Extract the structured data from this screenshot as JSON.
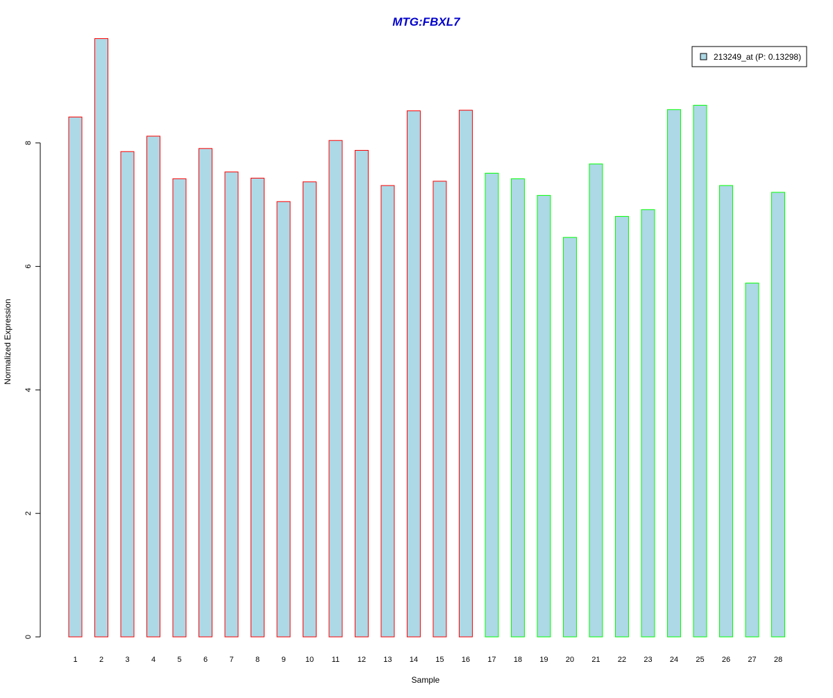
{
  "chart_data": {
    "type": "bar",
    "title": "MTG:FBXL7",
    "xlabel": "Sample",
    "ylabel": "Normalized Expression",
    "categories": [
      "1",
      "2",
      "3",
      "4",
      "5",
      "6",
      "7",
      "8",
      "9",
      "10",
      "11",
      "12",
      "13",
      "14",
      "15",
      "16",
      "17",
      "18",
      "19",
      "20",
      "21",
      "22",
      "23",
      "24",
      "25",
      "26",
      "27",
      "28"
    ],
    "series": [
      {
        "name": "213249_at (P: 0.13298)",
        "values": [
          8.42,
          9.69,
          7.86,
          8.11,
          7.42,
          7.91,
          7.53,
          7.43,
          7.05,
          7.37,
          8.04,
          7.88,
          7.31,
          8.52,
          7.38,
          8.53,
          7.51,
          7.42,
          7.15,
          6.47,
          7.66,
          6.81,
          6.92,
          8.54,
          8.61,
          7.31,
          5.73,
          7.2
        ]
      }
    ],
    "groups": [
      {
        "range": [
          1,
          16
        ],
        "border_color": "#ff0000"
      },
      {
        "range": [
          17,
          28
        ],
        "border_color": "#00ff00"
      }
    ],
    "ylim": [
      0,
      9.69
    ],
    "yticks": [
      0,
      2,
      4,
      6,
      8
    ],
    "legend_position": "top-right",
    "grid": false,
    "colors": {
      "bar_fill": "#add8e6",
      "title": "#0000cd",
      "axis": "#000000"
    }
  }
}
